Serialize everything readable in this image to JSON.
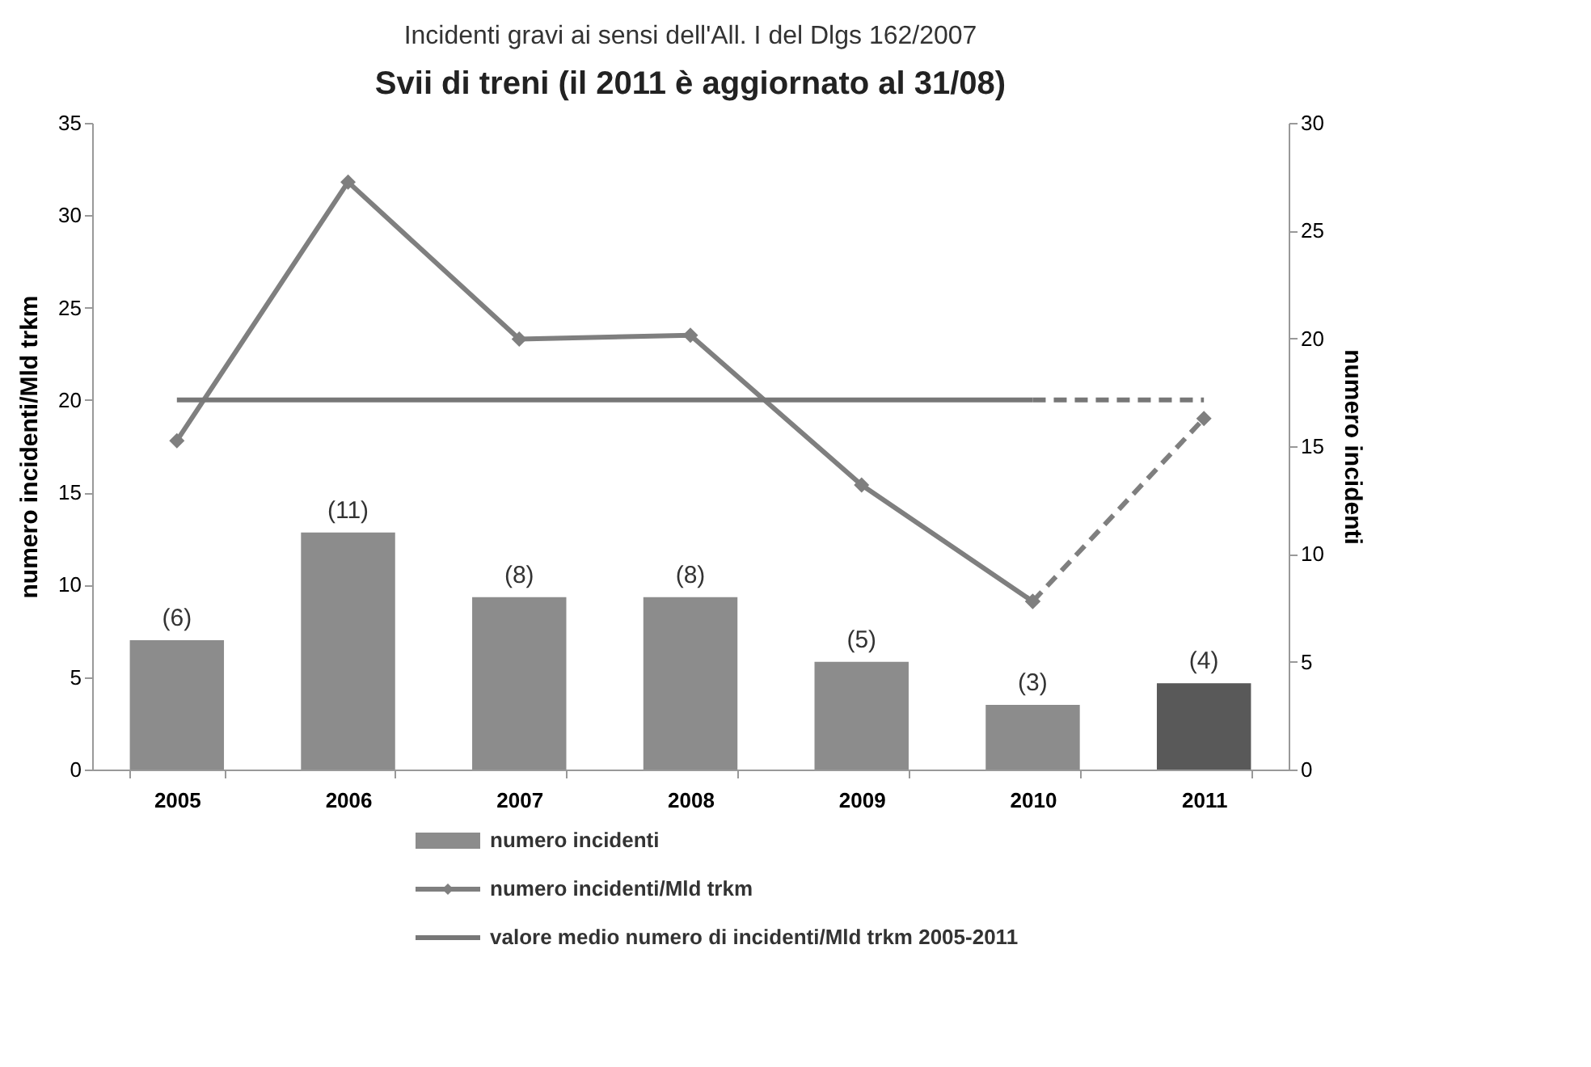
{
  "chart_data": {
    "type": "bar",
    "subtitle": "Incidenti gravi ai sensi dell'All. I del Dlgs 162/2007",
    "title": "Svii di treni (il 2011 è aggiornato al 31/08)",
    "ylabel": "numero incidenti/Mld trkm",
    "y2label": "numero incidenti",
    "categories": [
      "2005",
      "2006",
      "2007",
      "2008",
      "2009",
      "2010",
      "2011"
    ],
    "ylim": [
      0,
      35
    ],
    "yticks": [
      0,
      5,
      10,
      15,
      20,
      25,
      30,
      35
    ],
    "y2lim": [
      0,
      30
    ],
    "y2ticks": [
      0,
      5,
      10,
      15,
      20,
      25,
      30
    ],
    "grid": false,
    "legend": "bottom",
    "series": [
      {
        "name": "numero incidenti",
        "axis": "y2",
        "color": "#8c8c8c",
        "colors": [
          "#8c8c8c",
          "#8c8c8c",
          "#8c8c8c",
          "#8c8c8c",
          "#8c8c8c",
          "#8c8c8c",
          "#595959"
        ],
        "values": [
          6,
          11,
          8,
          8,
          5,
          3,
          4
        ],
        "value_labels": [
          "(6)",
          "(11)",
          "(8)",
          "(8)",
          "(5)",
          "(3)",
          "(4)"
        ]
      },
      {
        "name": "numero incidenti/Mld trkm",
        "type": "line",
        "color": "#7f7f7f",
        "marker": "diamond",
        "line_style": "solid",
        "values": [
          17.8,
          31.8,
          23.3,
          23.5,
          15.4,
          9.1,
          null
        ]
      },
      {
        "type": "line",
        "color": "#7f7f7f",
        "marker": "diamond",
        "line_style": "dashed",
        "values": [
          null,
          null,
          null,
          null,
          null,
          9.1,
          19.0
        ]
      },
      {
        "name": "valore medio numero di incidenti/Mld trkm 2005-2011",
        "type": "line",
        "color": "#777777",
        "marker": "none",
        "line_style": "solid",
        "values": [
          20,
          20,
          20,
          20,
          20,
          20,
          null
        ]
      },
      {
        "type": "line",
        "color": "#777777",
        "marker": "none",
        "line_style": "dashed",
        "values": [
          null,
          null,
          null,
          null,
          null,
          20,
          20
        ]
      }
    ]
  }
}
